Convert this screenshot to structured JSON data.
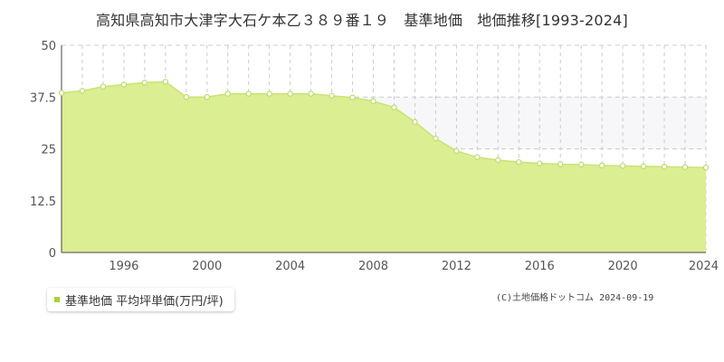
{
  "chart_data": {
    "type": "area",
    "title": "高知県高知市大津字大石ケ本乙３８９番１９　基準地価　地価推移[1993-2024]",
    "xlabel": "",
    "ylabel": "",
    "x": [
      1993,
      1994,
      1995,
      1996,
      1997,
      1998,
      1999,
      2000,
      2001,
      2002,
      2003,
      2004,
      2005,
      2006,
      2007,
      2008,
      2009,
      2010,
      2011,
      2012,
      2013,
      2014,
      2015,
      2016,
      2017,
      2018,
      2019,
      2020,
      2021,
      2022,
      2023,
      2024
    ],
    "series": [
      {
        "name": "基準地価 平均坪単価(万円/坪)",
        "values": [
          38.5,
          39.0,
          40.0,
          40.5,
          41.0,
          41.2,
          37.5,
          37.5,
          38.3,
          38.3,
          38.3,
          38.3,
          38.3,
          37.8,
          37.4,
          36.5,
          35.0,
          31.5,
          27.5,
          24.5,
          23.0,
          22.3,
          21.8,
          21.5,
          21.3,
          21.2,
          21.0,
          20.9,
          20.8,
          20.7,
          20.6,
          20.5
        ]
      }
    ],
    "x_ticks": [
      "1996",
      "2000",
      "2004",
      "2008",
      "2012",
      "2016",
      "2020",
      "2024"
    ],
    "y_ticks": [
      "0",
      "12.5",
      "25",
      "37.5",
      "50"
    ],
    "ylim": [
      0,
      50
    ],
    "xlim": [
      1993,
      2024
    ],
    "grid": true,
    "legend_position": "bottom-left"
  },
  "colors": {
    "area_fill": "#dbee92",
    "line": "#c9e472",
    "marker_fill": "#ffffff",
    "marker_stroke": "#bcdc6a",
    "legend_swatch": "#aad13b",
    "plot_background": "#ffffff",
    "grid": "#cccccc",
    "band": "#f7f7f9"
  },
  "copyright": "(C)土地価格ドットコム 2024-09-19"
}
